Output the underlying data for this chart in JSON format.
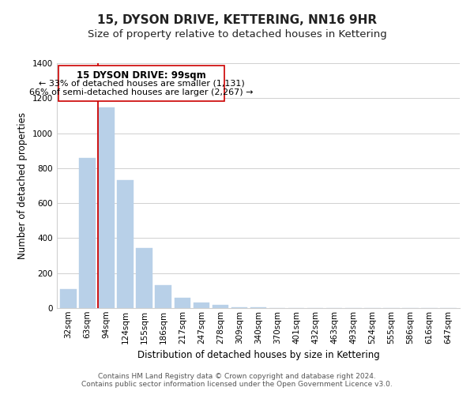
{
  "title": "15, DYSON DRIVE, KETTERING, NN16 9HR",
  "subtitle": "Size of property relative to detached houses in Kettering",
  "xlabel": "Distribution of detached houses by size in Kettering",
  "ylabel": "Number of detached properties",
  "bar_labels": [
    "32sqm",
    "63sqm",
    "94sqm",
    "124sqm",
    "155sqm",
    "186sqm",
    "217sqm",
    "247sqm",
    "278sqm",
    "309sqm",
    "340sqm",
    "370sqm",
    "401sqm",
    "432sqm",
    "463sqm",
    "493sqm",
    "524sqm",
    "555sqm",
    "586sqm",
    "616sqm",
    "647sqm"
  ],
  "bar_values": [
    107,
    860,
    1145,
    730,
    345,
    130,
    60,
    30,
    18,
    5,
    3,
    0,
    0,
    0,
    0,
    0,
    0,
    0,
    0,
    0,
    0
  ],
  "bar_color": "#b8d0e8",
  "bar_edge_color": "#b8d0e8",
  "highlight_line_color": "#cc0000",
  "highlight_line_index": 2,
  "ylim": [
    0,
    1400
  ],
  "yticks": [
    0,
    200,
    400,
    600,
    800,
    1000,
    1200,
    1400
  ],
  "annotation_line1": "15 DYSON DRIVE: 99sqm",
  "annotation_line2": "← 33% of detached houses are smaller (1,131)",
  "annotation_line3": "66% of semi-detached houses are larger (2,267) →",
  "footer_line1": "Contains HM Land Registry data © Crown copyright and database right 2024.",
  "footer_line2": "Contains public sector information licensed under the Open Government Licence v3.0.",
  "bg_color": "#ffffff",
  "grid_color": "#d0d0d0",
  "title_fontsize": 11,
  "subtitle_fontsize": 9.5,
  "axis_label_fontsize": 8.5,
  "tick_fontsize": 7.5,
  "annotation_fontsize": 8.5,
  "footer_fontsize": 6.5
}
